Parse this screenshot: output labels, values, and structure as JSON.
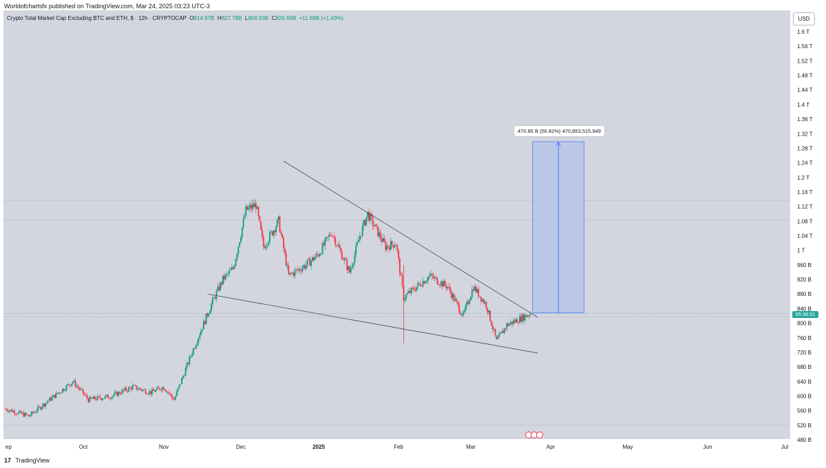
{
  "header": {
    "published": "Worldofchartsfx published on TradingView.com, Mar 24, 2025 03:23 UTC-3"
  },
  "legend": {
    "symbol": "Crypto Total Market Cap Excluding BTC and ETH, $ · 12h · CRYPTOCAP",
    "o_label": "O",
    "o": "814.97B",
    "h_label": "H",
    "h": "827.78B",
    "l_label": "L",
    "l": "809.93B",
    "c_label": "C",
    "c": "826.66B",
    "change": "+11.69B (+1.43%)"
  },
  "currency_button": "USD",
  "measure_label": "470.85 B (56.82%) 470,853,515,949",
  "countdown": "05:36:51",
  "footer": {
    "logo": "17",
    "brand": "TradingView"
  },
  "colors": {
    "up": "#089981",
    "down": "#f23645",
    "plot_bg": "#d3d6df",
    "measure_fill": "#b5c4e8",
    "measure_line": "#2962ff",
    "price_tag": "#26a69a"
  },
  "chart_data": {
    "type": "candlestick",
    "title": "Crypto Total Market Cap Excluding BTC and ETH",
    "y_unit": "USD",
    "y_ticks": [
      "1.6 T",
      "1.56 T",
      "1.52 T",
      "1.48 T",
      "1.44 T",
      "1.4 T",
      "1.36 T",
      "1.32 T",
      "1.28 T",
      "1.24 T",
      "1.2 T",
      "1.16 T",
      "1.12 T",
      "1.08 T",
      "1.04 T",
      "1 T",
      "960 B",
      "920 B",
      "880 B",
      "840 B",
      "800 B",
      "760 B",
      "720 B",
      "680 B",
      "640 B",
      "600 B",
      "560 B",
      "520 B",
      "480 B"
    ],
    "x_ticks": [
      "Sep",
      "Oct",
      "Nov",
      "Dec",
      "2025",
      "Feb",
      "Mar",
      "Apr",
      "May",
      "Jun",
      "Jul"
    ],
    "ylim_billions": [
      480,
      1600
    ],
    "approx_close_path_billions": [
      {
        "date": "2024-09-01",
        "v": 565
      },
      {
        "date": "2024-09-10",
        "v": 545
      },
      {
        "date": "2024-09-18",
        "v": 590
      },
      {
        "date": "2024-09-27",
        "v": 640
      },
      {
        "date": "2024-10-03",
        "v": 590
      },
      {
        "date": "2024-10-12",
        "v": 600
      },
      {
        "date": "2024-10-20",
        "v": 625
      },
      {
        "date": "2024-10-27",
        "v": 610
      },
      {
        "date": "2024-11-01",
        "v": 625
      },
      {
        "date": "2024-11-05",
        "v": 590
      },
      {
        "date": "2024-11-12",
        "v": 720
      },
      {
        "date": "2024-11-20",
        "v": 860
      },
      {
        "date": "2024-11-24",
        "v": 920
      },
      {
        "date": "2024-11-28",
        "v": 950
      },
      {
        "date": "2024-12-03",
        "v": 1110
      },
      {
        "date": "2024-12-07",
        "v": 1125
      },
      {
        "date": "2024-12-10",
        "v": 1010
      },
      {
        "date": "2024-12-16",
        "v": 1080
      },
      {
        "date": "2024-12-20",
        "v": 930
      },
      {
        "date": "2024-12-27",
        "v": 960
      },
      {
        "date": "2025-01-01",
        "v": 990
      },
      {
        "date": "2025-01-06",
        "v": 1050
      },
      {
        "date": "2025-01-13",
        "v": 940
      },
      {
        "date": "2025-01-17",
        "v": 1040
      },
      {
        "date": "2025-01-20",
        "v": 1100
      },
      {
        "date": "2025-01-27",
        "v": 1010
      },
      {
        "date": "2025-01-31",
        "v": 1020
      },
      {
        "date": "2025-02-03",
        "v": 870
      },
      {
        "date": "2025-02-08",
        "v": 900
      },
      {
        "date": "2025-02-13",
        "v": 930
      },
      {
        "date": "2025-02-20",
        "v": 900
      },
      {
        "date": "2025-02-26",
        "v": 820
      },
      {
        "date": "2025-03-02",
        "v": 900
      },
      {
        "date": "2025-03-07",
        "v": 850
      },
      {
        "date": "2025-03-11",
        "v": 750
      },
      {
        "date": "2025-03-15",
        "v": 795
      },
      {
        "date": "2025-03-20",
        "v": 812
      },
      {
        "date": "2025-03-24",
        "v": 826.66
      }
    ],
    "trendlines": [
      {
        "name": "upper",
        "from": {
          "date": "2024-12-18",
          "v": 1245
        },
        "to": {
          "date": "2025-03-27",
          "v": 816
        }
      },
      {
        "name": "lower",
        "from": {
          "date": "2024-11-18",
          "v": 880
        },
        "to": {
          "date": "2025-03-27",
          "v": 718
        }
      }
    ],
    "horizontal_levels_billions": [
      1137,
      1083,
      817,
      520
    ],
    "measurement": {
      "from_date": "2025-03-25",
      "to_date": "2025-04-14",
      "from_v": 828,
      "to_v": 1298,
      "delta_billions": 470.85,
      "delta_pct": 56.82
    },
    "last_price_billions": 826.66,
    "grid": false,
    "legend_position": "top-left"
  }
}
